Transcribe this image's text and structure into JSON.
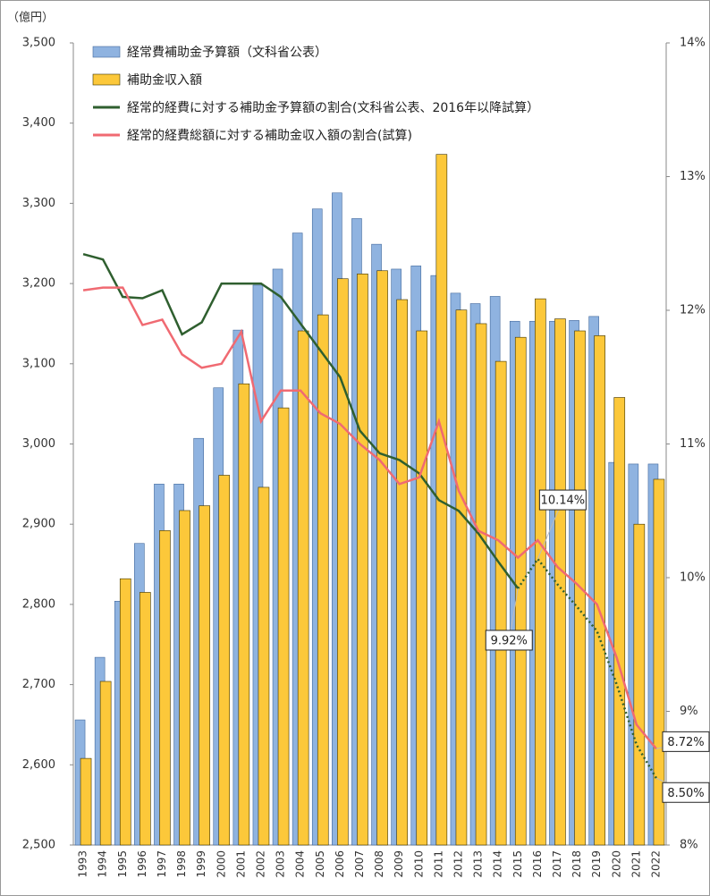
{
  "chart_data": {
    "type": "bar-line",
    "y_label": "（億円）",
    "categories": [
      "1993",
      "1994",
      "1995",
      "1996",
      "1997",
      "1998",
      "1999",
      "2000",
      "2001",
      "2002",
      "2003",
      "2004",
      "2005",
      "2006",
      "2007",
      "2008",
      "2009",
      "2010",
      "2011",
      "2012",
      "2013",
      "2014",
      "2015",
      "2016",
      "2017",
      "2018",
      "2019",
      "2020",
      "2021",
      "2022"
    ],
    "ylim": [
      2500,
      3500
    ],
    "yticks": [
      {
        "value": 2500,
        "label": "2,500"
      },
      {
        "value": 2600,
        "label": "2,600"
      },
      {
        "value": 2700,
        "label": "2,700"
      },
      {
        "value": 2800,
        "label": "2,800"
      },
      {
        "value": 2900,
        "label": "2,900"
      },
      {
        "value": 3000,
        "label": "3,000"
      },
      {
        "value": 3100,
        "label": "3,100"
      },
      {
        "value": 3200,
        "label": "3,200"
      },
      {
        "value": 3300,
        "label": "3,300"
      },
      {
        "value": 3400,
        "label": "3,400"
      },
      {
        "value": 3500,
        "label": "3,500"
      }
    ],
    "y2lim": [
      8,
      14
    ],
    "y2ticks": [
      {
        "value": 8,
        "label": "8%"
      },
      {
        "value": 9,
        "label": "9%"
      },
      {
        "value": 10,
        "label": "10%"
      },
      {
        "value": 11,
        "label": "11%"
      },
      {
        "value": 12,
        "label": "12%"
      },
      {
        "value": 13,
        "label": "13%"
      },
      {
        "value": 14,
        "label": "14%"
      }
    ],
    "legend": "upper left",
    "series": [
      {
        "name": "経常費補助金予算額（文科省公表）",
        "type": "bar",
        "color": "#8fb3e0",
        "edge": "#41689c",
        "values": [
          2656,
          2734,
          2804,
          2876,
          2950,
          2950,
          3007,
          3070,
          3142,
          3198,
          3218,
          3263,
          3293,
          3313,
          3281,
          3249,
          3218,
          3222,
          3210,
          3188,
          3175,
          3184,
          3153,
          3153,
          3153,
          3154,
          3159,
          2977,
          2975,
          2975
        ]
      },
      {
        "name": "補助金収入額",
        "type": "bar",
        "color": "#fcc83a",
        "edge": "#3d3200",
        "values": [
          2608,
          2704,
          2832,
          2815,
          2892,
          2917,
          2923,
          2961,
          3075,
          2946,
          3045,
          3141,
          3161,
          3206,
          3212,
          3216,
          3180,
          3141,
          3361,
          3167,
          3150,
          3103,
          3133,
          3181,
          3156,
          3141,
          3135,
          3058,
          2900,
          2956
        ]
      },
      {
        "name": "経常的経費に対する補助金予算額の割合(文科省公表、2016年以降試算）",
        "type": "line",
        "axis": "y2",
        "color": "#2f5f2f",
        "dotted_from": 22,
        "values": [
          12.42,
          12.38,
          12.1,
          12.09,
          12.15,
          11.82,
          11.91,
          12.2,
          12.2,
          12.2,
          12.1,
          11.9,
          11.7,
          11.5,
          11.1,
          10.93,
          10.88,
          10.78,
          10.58,
          10.5,
          10.33,
          10.12,
          9.92,
          10.14,
          9.95,
          9.78,
          9.6,
          9.2,
          8.75,
          8.5
        ],
        "value_labels": [
          null,
          null,
          null,
          null,
          null,
          null,
          null,
          null,
          null,
          null,
          null,
          null,
          null,
          null,
          null,
          null,
          null,
          null,
          null,
          null,
          null,
          null,
          "9.92%",
          "10.14%",
          null,
          null,
          null,
          null,
          null,
          "8.50%"
        ]
      },
      {
        "name": "経常的経費総額に対する補助金収入額の割合(試算)",
        "type": "line",
        "axis": "y2",
        "color": "#f06a72",
        "values": [
          12.15,
          12.17,
          12.17,
          11.89,
          11.93,
          11.67,
          11.57,
          11.6,
          11.84,
          11.17,
          11.4,
          11.4,
          11.23,
          11.15,
          11.0,
          10.88,
          10.7,
          10.75,
          11.17,
          10.65,
          10.35,
          10.28,
          10.15,
          10.28,
          10.08,
          9.95,
          9.8,
          9.4,
          8.9,
          8.72
        ],
        "value_labels": [
          null,
          null,
          null,
          null,
          null,
          null,
          null,
          null,
          null,
          null,
          null,
          null,
          null,
          null,
          null,
          null,
          null,
          null,
          null,
          null,
          null,
          null,
          null,
          null,
          null,
          null,
          null,
          null,
          null,
          "8.72%"
        ]
      }
    ]
  }
}
